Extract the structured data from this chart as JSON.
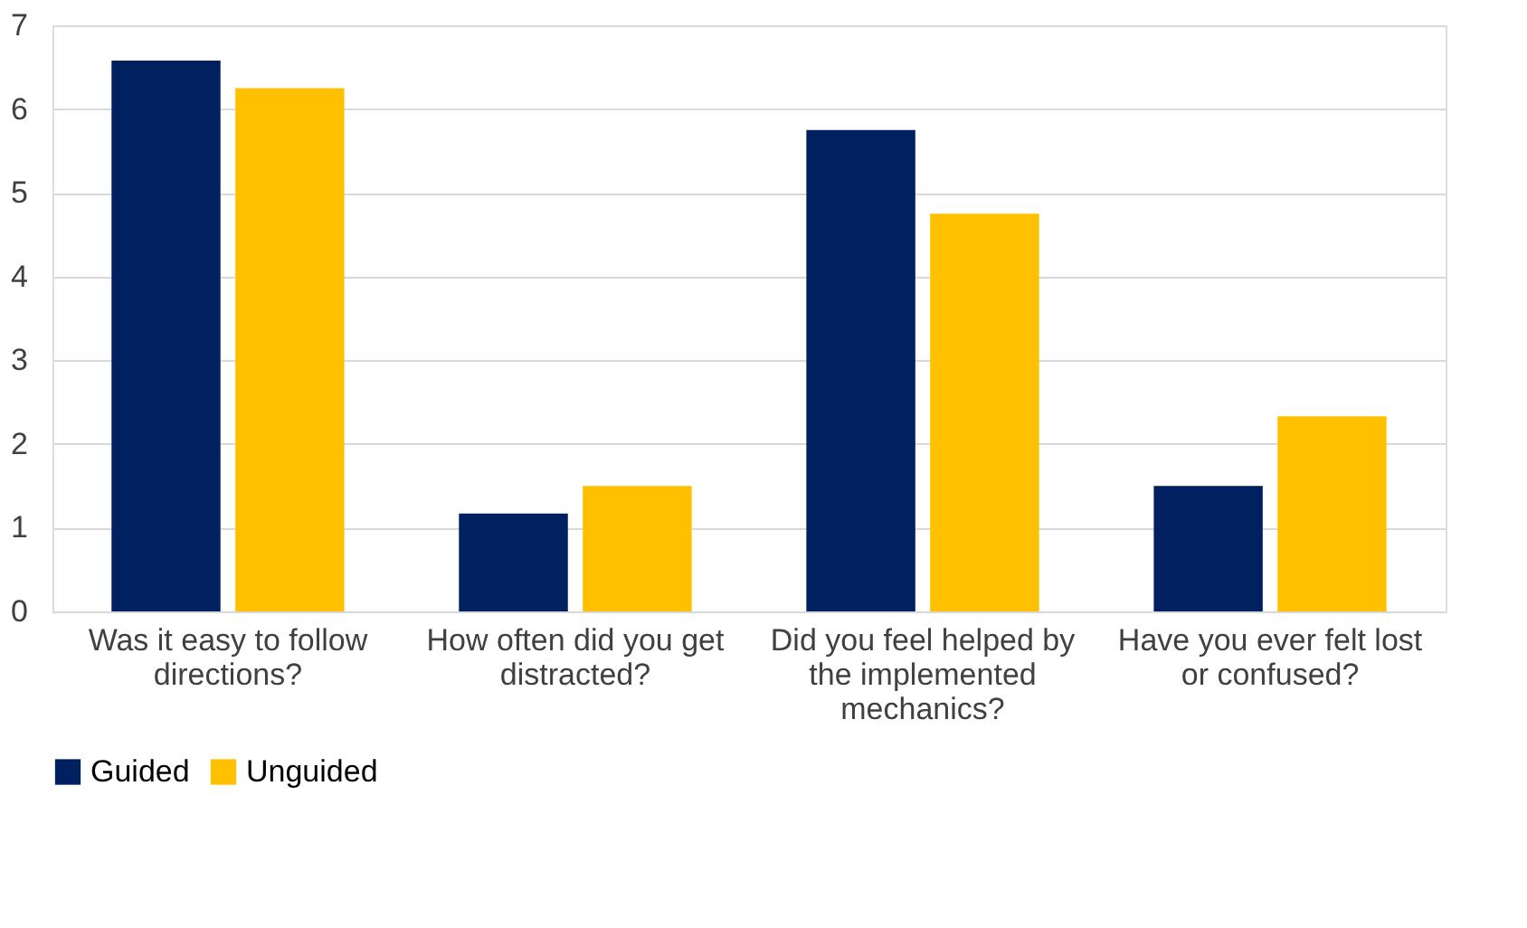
{
  "chart_data": {
    "type": "bar",
    "categories": [
      "Was it easy to follow directions?",
      "How often did you get distracted?",
      "Did you feel helped by the implemented mechanics?",
      "Have you ever felt lost or confused?"
    ],
    "series": [
      {
        "name": "Guided",
        "color": "#002060",
        "values": [
          6.58,
          1.17,
          5.75,
          1.5
        ]
      },
      {
        "name": "Unguided",
        "color": "#ffc000",
        "values": [
          6.25,
          1.5,
          4.75,
          2.33
        ]
      }
    ],
    "ylim": [
      0,
      7
    ],
    "yticks": [
      0,
      1,
      2,
      3,
      4,
      5,
      6,
      7
    ],
    "grid": "y",
    "legend": "bottom"
  }
}
